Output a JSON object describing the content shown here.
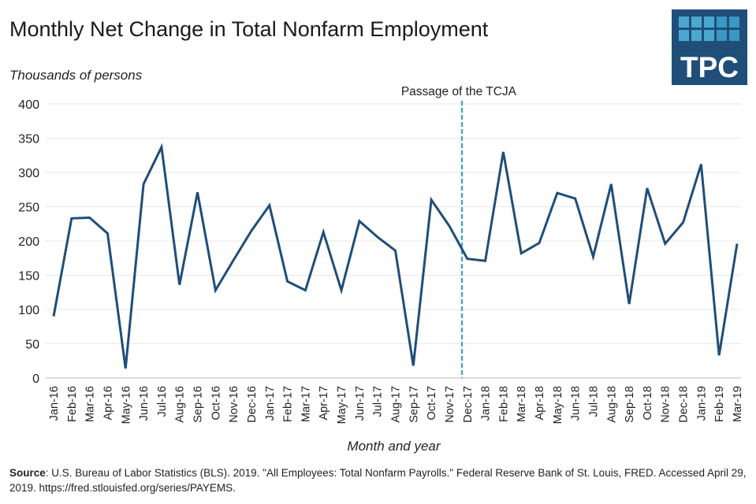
{
  "chart_data": {
    "type": "line",
    "title": "Monthly Net Change in Total Nonfarm Employment",
    "ylabel": "Thousands of persons",
    "xlabel": "Month and year",
    "ylim": [
      0,
      400
    ],
    "yticks": [
      0,
      50,
      100,
      150,
      200,
      250,
      300,
      350,
      400
    ],
    "grid": "horizontal",
    "line_color": "#1f4e79",
    "categories": [
      "Jan-16",
      "Feb-16",
      "Mar-16",
      "Apr-16",
      "May-16",
      "Jun-16",
      "Jul-16",
      "Aug-16",
      "Sep-16",
      "Oct-16",
      "Nov-16",
      "Dec-16",
      "Jan-17",
      "Feb-17",
      "Mar-17",
      "Apr-17",
      "May-17",
      "Jun-17",
      "Jul-17",
      "Aug-17",
      "Sep-17",
      "Oct-17",
      "Nov-17",
      "Dec-17",
      "Jan-18",
      "Feb-18",
      "Mar-18",
      "Apr-18",
      "May-18",
      "Jun-18",
      "Jul-18",
      "Aug-18",
      "Sep-18",
      "Oct-18",
      "Nov-18",
      "Dec-18",
      "Jan-19",
      "Feb-19",
      "Mar-19"
    ],
    "values": [
      90,
      233,
      234,
      211,
      14,
      283,
      337,
      136,
      271,
      128,
      172,
      215,
      252,
      141,
      128,
      213,
      128,
      229,
      206,
      186,
      18,
      260,
      222,
      174,
      171,
      330,
      182,
      197,
      270,
      262,
      177,
      283,
      108,
      277,
      196,
      227,
      312,
      33,
      196
    ],
    "annotation": {
      "text": "Passage of the TCJA",
      "between": [
        "Nov-17",
        "Dec-17"
      ],
      "style": "dashed vertical line",
      "color": "#2a9fd6"
    }
  },
  "source": {
    "label": "Source",
    "text": ": U.S. Bureau of Labor Statistics (BLS). 2019. \"All Employees: Total Nonfarm Payrolls.\" Federal Reserve Bank of St. Louis, FRED. Accessed April 29, 2019. https://fred.stlouisfed.org/series/PAYEMS."
  },
  "logo": {
    "text": "TPC",
    "bg": "#1f4e79",
    "tile_color": "#4aa8d0"
  }
}
